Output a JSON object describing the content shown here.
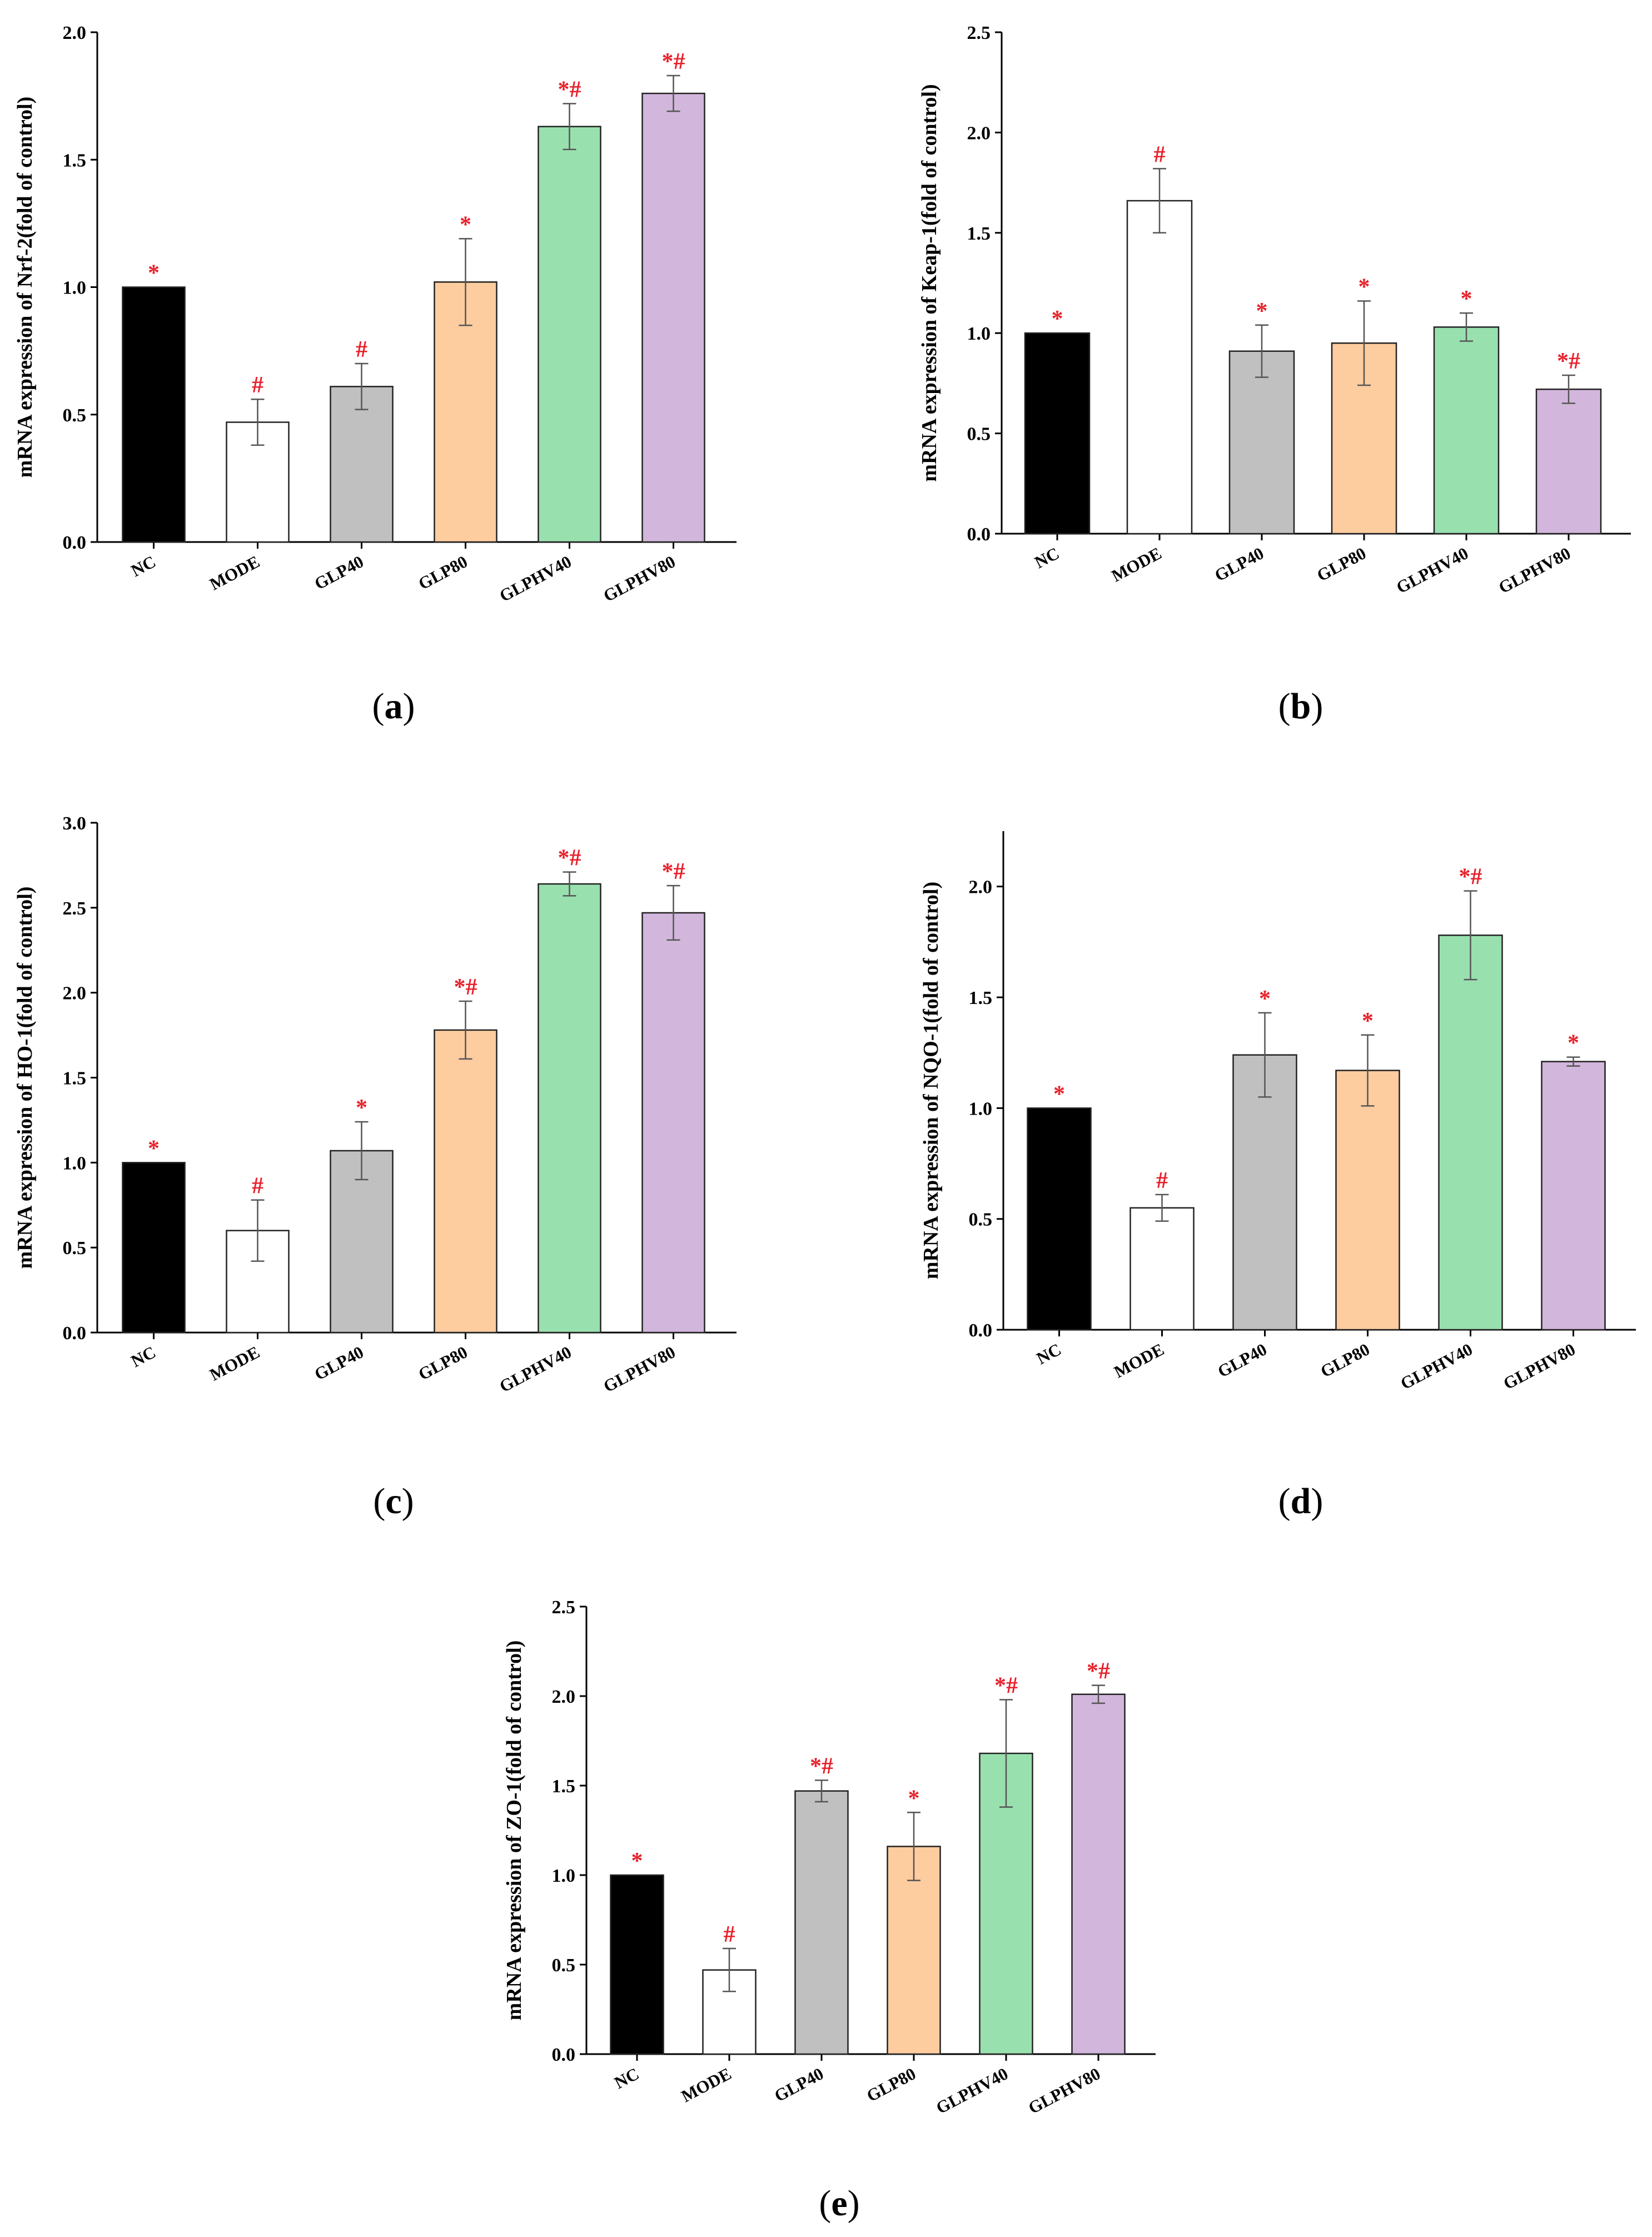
{
  "colors": {
    "NC": "#000000",
    "MODE": "#ffffff",
    "GLP40": "#c0c0c0",
    "GLP80": "#fdcc9f",
    "GLPHV40": "#99e0af",
    "GLPHV80": "#d2b6dc",
    "significance": "#e8202a"
  },
  "chart_data": [
    {
      "id": "a",
      "type": "bar",
      "caption_letter": "a",
      "ylabel": "mRNA expression of Nrf-2(fold of control)",
      "categories": [
        "NC",
        "MODE",
        "GLP40",
        "GLP80",
        "GLPHV40",
        "GLPHV80"
      ],
      "values": [
        1.0,
        0.47,
        0.61,
        1.02,
        1.63,
        1.76
      ],
      "errors": [
        0.0,
        0.09,
        0.09,
        0.17,
        0.09,
        0.07
      ],
      "marks": [
        "*",
        "#",
        "#",
        "*",
        "*#",
        "*#"
      ],
      "ylim": [
        0,
        2.0
      ],
      "yticks": [
        "0.0",
        "0.5",
        "1.0",
        "1.5",
        "2.0"
      ]
    },
    {
      "id": "b",
      "type": "bar",
      "caption_letter": "b",
      "ylabel": "mRNA expression of Keap-1(fold of control)",
      "categories": [
        "NC",
        "MODE",
        "GLP40",
        "GLP80",
        "GLPHV40",
        "GLPHV80"
      ],
      "values": [
        1.0,
        1.66,
        0.91,
        0.95,
        1.03,
        0.72
      ],
      "errors": [
        0.0,
        0.16,
        0.13,
        0.21,
        0.07,
        0.07
      ],
      "marks": [
        "*",
        "#",
        "*",
        "*",
        "*",
        "*#"
      ],
      "ylim": [
        0,
        2.5
      ],
      "yticks": [
        "0.0",
        "0.5",
        "1.0",
        "1.5",
        "2.0",
        "2.5"
      ]
    },
    {
      "id": "c",
      "type": "bar",
      "caption_letter": "c",
      "ylabel": "mRNA expression of HO-1(fold of control)",
      "categories": [
        "NC",
        "MODE",
        "GLP40",
        "GLP80",
        "GLPHV40",
        "GLPHV80"
      ],
      "values": [
        1.0,
        0.6,
        1.07,
        1.78,
        2.64,
        2.47
      ],
      "errors": [
        0.0,
        0.18,
        0.17,
        0.17,
        0.07,
        0.16
      ],
      "marks": [
        "*",
        "#",
        "*",
        "*#",
        "*#",
        "*#"
      ],
      "ylim": [
        0,
        3.0
      ],
      "yticks": [
        "0.0",
        "0.5",
        "1.0",
        "1.5",
        "2.0",
        "2.5",
        "3.0"
      ]
    },
    {
      "id": "d",
      "type": "bar",
      "caption_letter": "d",
      "ylabel": "mRNA expression of NQO-1(fold of control)",
      "categories": [
        "NC",
        "MODE",
        "GLP40",
        "GLP80",
        "GLPHV40",
        "GLPHV80"
      ],
      "values": [
        1.0,
        0.55,
        1.24,
        1.17,
        1.78,
        1.21
      ],
      "errors": [
        0.0,
        0.06,
        0.19,
        0.16,
        0.2,
        0.02
      ],
      "marks": [
        "*",
        "#",
        "*",
        "*",
        "*#",
        "*"
      ],
      "ylim": [
        0,
        2.25
      ],
      "yticks": [
        "0.0",
        "0.5",
        "1.0",
        "1.5",
        "2.0"
      ]
    },
    {
      "id": "e",
      "type": "bar",
      "caption_letter": "e",
      "ylabel": "mRNA expression of ZO-1(fold of control)",
      "categories": [
        "NC",
        "MODE",
        "GLP40",
        "GLP80",
        "GLPHV40",
        "GLPHV80"
      ],
      "values": [
        1.0,
        0.47,
        1.47,
        1.16,
        1.68,
        2.01
      ],
      "errors": [
        0.0,
        0.12,
        0.06,
        0.19,
        0.3,
        0.05
      ],
      "marks": [
        "*",
        "#",
        "*#",
        "*",
        "*#",
        "*#"
      ],
      "ylim": [
        0,
        2.5
      ],
      "yticks": [
        "0.0",
        "0.5",
        "1.0",
        "1.5",
        "2.0",
        "2.5"
      ]
    }
  ]
}
